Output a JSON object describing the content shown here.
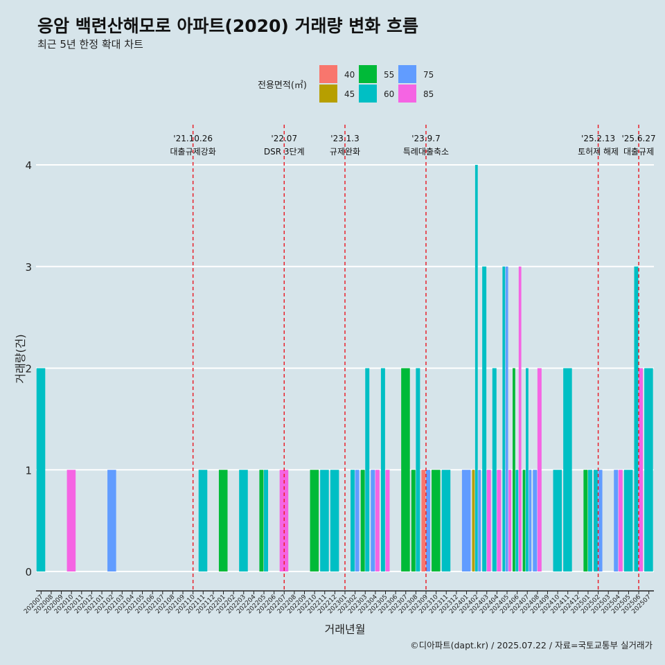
{
  "title": "응암 백련산해모로 아파트(2020) 거래량 변화 흐름",
  "subtitle": "최근 5년 한정 확대 차트",
  "caption": "©디아파트(dapt.kr) / 2025.07.22 / 자료=국토교통부 실거래가",
  "chart_data": {
    "type": "bar",
    "xlabel": "거래년월",
    "ylabel": "거래량(건)",
    "ylim": [
      0,
      4
    ],
    "yticks": [
      0,
      1,
      2,
      3,
      4
    ],
    "grid": true,
    "legend": {
      "title": "전용면적(㎡)",
      "position": "top",
      "entries": [
        {
          "name": "40",
          "color": "#F8766D"
        },
        {
          "name": "45",
          "color": "#B79F00"
        },
        {
          "name": "55",
          "color": "#00BA38"
        },
        {
          "name": "60",
          "color": "#00BFC4"
        },
        {
          "name": "75",
          "color": "#619CFF"
        },
        {
          "name": "85",
          "color": "#F564E3"
        }
      ]
    },
    "categories": [
      "202007",
      "202008",
      "202009",
      "202010",
      "202011",
      "202012",
      "202101",
      "202102",
      "202103",
      "202104",
      "202105",
      "202106",
      "202107",
      "202108",
      "202109",
      "202110",
      "202111",
      "202112",
      "202201",
      "202202",
      "202203",
      "202204",
      "202205",
      "202206",
      "202207",
      "202208",
      "202209",
      "202210",
      "202211",
      "202212",
      "202301",
      "202302",
      "202303",
      "202304",
      "202305",
      "202306",
      "202307",
      "202308",
      "202309",
      "202310",
      "202311",
      "202312",
      "202401",
      "202402",
      "202403",
      "202404",
      "202405",
      "202406",
      "202407",
      "202408",
      "202409",
      "202410",
      "202411",
      "202412",
      "202501",
      "202502",
      "202503",
      "202504",
      "202505",
      "202506",
      "202507"
    ],
    "bars": [
      {
        "month": "202007",
        "area": "60",
        "value": 2
      },
      {
        "month": "202010",
        "area": "85",
        "value": 1
      },
      {
        "month": "202102",
        "area": "75",
        "value": 1
      },
      {
        "month": "202111",
        "area": "60",
        "value": 1
      },
      {
        "month": "202201",
        "area": "55",
        "value": 1
      },
      {
        "month": "202203",
        "area": "60",
        "value": 1
      },
      {
        "month": "202205",
        "area": "55",
        "value": 1
      },
      {
        "month": "202205",
        "area": "60",
        "value": 1
      },
      {
        "month": "202207",
        "area": "85",
        "value": 1
      },
      {
        "month": "202210",
        "area": "55",
        "value": 1
      },
      {
        "month": "202211",
        "area": "60",
        "value": 1
      },
      {
        "month": "202212",
        "area": "60",
        "value": 1
      },
      {
        "month": "202302",
        "area": "60",
        "value": 1
      },
      {
        "month": "202302",
        "area": "75",
        "value": 1
      },
      {
        "month": "202303",
        "area": "55",
        "value": 1
      },
      {
        "month": "202303",
        "area": "60",
        "value": 2
      },
      {
        "month": "202304",
        "area": "75",
        "value": 1
      },
      {
        "month": "202304",
        "area": "85",
        "value": 1
      },
      {
        "month": "202305",
        "area": "60",
        "value": 2
      },
      {
        "month": "202305",
        "area": "85",
        "value": 1
      },
      {
        "month": "202307",
        "area": "55",
        "value": 2
      },
      {
        "month": "202308",
        "area": "55",
        "value": 1
      },
      {
        "month": "202308",
        "area": "60",
        "value": 2
      },
      {
        "month": "202309",
        "area": "40",
        "value": 1
      },
      {
        "month": "202309",
        "area": "75",
        "value": 1
      },
      {
        "month": "202310",
        "area": "55",
        "value": 1
      },
      {
        "month": "202311",
        "area": "60",
        "value": 1
      },
      {
        "month": "202401",
        "area": "75",
        "value": 1
      },
      {
        "month": "202402",
        "area": "45",
        "value": 1
      },
      {
        "month": "202402",
        "area": "60",
        "value": 4
      },
      {
        "month": "202402",
        "area": "75",
        "value": 1
      },
      {
        "month": "202403",
        "area": "60",
        "value": 3
      },
      {
        "month": "202403",
        "area": "85",
        "value": 1
      },
      {
        "month": "202404",
        "area": "60",
        "value": 2
      },
      {
        "month": "202404",
        "area": "85",
        "value": 1
      },
      {
        "month": "202405",
        "area": "60",
        "value": 3
      },
      {
        "month": "202405",
        "area": "75",
        "value": 3
      },
      {
        "month": "202405",
        "area": "85",
        "value": 1
      },
      {
        "month": "202406",
        "area": "55",
        "value": 2
      },
      {
        "month": "202406",
        "area": "60",
        "value": 1
      },
      {
        "month": "202406",
        "area": "85",
        "value": 3
      },
      {
        "month": "202407",
        "area": "55",
        "value": 1
      },
      {
        "month": "202407",
        "area": "60",
        "value": 2
      },
      {
        "month": "202407",
        "area": "75",
        "value": 1
      },
      {
        "month": "202408",
        "area": "75",
        "value": 1
      },
      {
        "month": "202408",
        "area": "85",
        "value": 2
      },
      {
        "month": "202410",
        "area": "60",
        "value": 1
      },
      {
        "month": "202411",
        "area": "60",
        "value": 2
      },
      {
        "month": "202501",
        "area": "55",
        "value": 1
      },
      {
        "month": "202501",
        "area": "60",
        "value": 1
      },
      {
        "month": "202502",
        "area": "60",
        "value": 1
      },
      {
        "month": "202502",
        "area": "75",
        "value": 1
      },
      {
        "month": "202504",
        "area": "75",
        "value": 1
      },
      {
        "month": "202504",
        "area": "85",
        "value": 1
      },
      {
        "month": "202505",
        "area": "60",
        "value": 1
      },
      {
        "month": "202506",
        "area": "60",
        "value": 3
      },
      {
        "month": "202506",
        "area": "85",
        "value": 2
      },
      {
        "month": "202507",
        "area": "60",
        "value": 2
      }
    ],
    "events": [
      {
        "month": "202110",
        "date": "'21.10.26",
        "label": "대출규제강화"
      },
      {
        "month": "202207",
        "date": "'22.07",
        "label": "DSR 3단계"
      },
      {
        "month": "202301",
        "date": "'23.1.3",
        "label": "규제완화"
      },
      {
        "month": "202309",
        "date": "'23.9.7",
        "label": "특례대출축소"
      },
      {
        "month": "202502",
        "date": "'25.2.13",
        "label": "토허제 해제"
      },
      {
        "month": "202506",
        "date": "'25.6.27",
        "label": "대출규제"
      }
    ]
  }
}
